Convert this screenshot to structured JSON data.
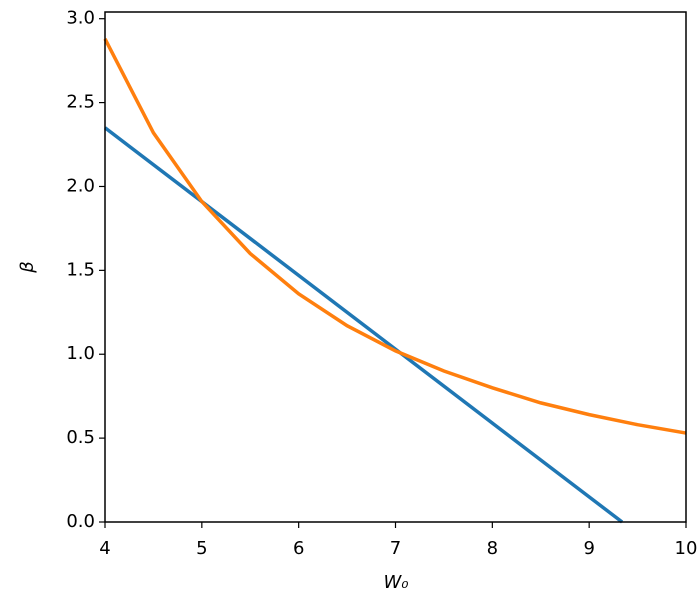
{
  "chart_data": {
    "type": "line",
    "xlabel": "W₀",
    "ylabel": "β",
    "xlim": [
      4,
      10
    ],
    "ylim": [
      0,
      3.04
    ],
    "xticks": [
      4,
      5,
      6,
      7,
      8,
      9,
      10
    ],
    "yticks": [
      {
        "value": 0,
        "label": "0.0"
      },
      0.5,
      {
        "value": 1,
        "label": "1.0"
      },
      1.5,
      {
        "value": 2,
        "label": "2.0"
      },
      2.5,
      {
        "value": 3,
        "label": "3.0"
      }
    ],
    "series": [
      {
        "color": "#1f77b4",
        "x": [
          4,
          9.34
        ],
        "values": [
          2.35,
          0
        ]
      },
      {
        "color": "#ff7f0e",
        "x": [
          4,
          4.5,
          5,
          5.5,
          6,
          6.5,
          7,
          7.5,
          8,
          8.5,
          9,
          9.5,
          10
        ],
        "values": [
          2.88,
          2.32,
          1.91,
          1.6,
          1.36,
          1.17,
          1.02,
          0.9,
          0.8,
          0.71,
          0.64,
          0.58,
          0.53
        ]
      }
    ]
  }
}
